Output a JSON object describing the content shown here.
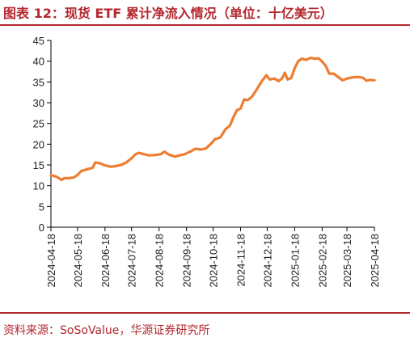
{
  "header": {
    "title": "图表 12：现货 ETF 累计净流入情况（单位：十亿美元）"
  },
  "footer": {
    "source": "资料来源：SoSoValue，华源证券研究所"
  },
  "colors": {
    "accent": "#b3272e",
    "line": "#ed7d31",
    "axis": "#000000"
  },
  "chart_data": {
    "type": "line",
    "title": "",
    "xlabel": "",
    "ylabel": "",
    "ylim": [
      0,
      45
    ],
    "yticks": [
      0,
      5,
      10,
      15,
      20,
      25,
      30,
      35,
      40,
      45
    ],
    "grid": false,
    "legend": "none",
    "x_tick_labels": [
      "2024-04-18",
      "2024-05-18",
      "2024-06-18",
      "2024-07-18",
      "2024-08-18",
      "2024-09-18",
      "2024-10-18",
      "2024-11-18",
      "2024-12-18",
      "2025-01-18",
      "2025-02-18",
      "2025-03-18",
      "2025-04-18"
    ],
    "series": [
      {
        "values": [
          [
            "2024-04-18",
            12.5
          ],
          [
            "2024-04-24",
            12.2
          ],
          [
            "2024-04-30",
            11.4
          ],
          [
            "2024-05-03",
            11.8
          ],
          [
            "2024-05-08",
            11.8
          ],
          [
            "2024-05-14",
            12.0
          ],
          [
            "2024-05-18",
            12.6
          ],
          [
            "2024-05-22",
            13.5
          ],
          [
            "2024-05-28",
            13.9
          ],
          [
            "2024-06-04",
            14.3
          ],
          [
            "2024-06-07",
            15.6
          ],
          [
            "2024-06-12",
            15.4
          ],
          [
            "2024-06-18",
            14.9
          ],
          [
            "2024-06-24",
            14.6
          ],
          [
            "2024-06-30",
            14.7
          ],
          [
            "2024-07-06",
            15.0
          ],
          [
            "2024-07-12",
            15.6
          ],
          [
            "2024-07-18",
            16.6
          ],
          [
            "2024-07-22",
            17.5
          ],
          [
            "2024-07-26",
            17.9
          ],
          [
            "2024-08-01",
            17.6
          ],
          [
            "2024-08-07",
            17.3
          ],
          [
            "2024-08-14",
            17.4
          ],
          [
            "2024-08-20",
            17.6
          ],
          [
            "2024-08-24",
            18.2
          ],
          [
            "2024-08-29",
            17.5
          ],
          [
            "2024-09-05",
            17.0
          ],
          [
            "2024-09-10",
            17.3
          ],
          [
            "2024-09-16",
            17.6
          ],
          [
            "2024-09-22",
            18.2
          ],
          [
            "2024-09-28",
            18.9
          ],
          [
            "2024-10-04",
            18.7
          ],
          [
            "2024-10-10",
            19.0
          ],
          [
            "2024-10-16",
            20.2
          ],
          [
            "2024-10-20",
            21.2
          ],
          [
            "2024-10-26",
            21.6
          ],
          [
            "2024-11-01",
            23.6
          ],
          [
            "2024-11-06",
            24.5
          ],
          [
            "2024-11-10",
            26.6
          ],
          [
            "2024-11-14",
            28.2
          ],
          [
            "2024-11-18",
            28.6
          ],
          [
            "2024-11-22",
            30.8
          ],
          [
            "2024-11-26",
            30.6
          ],
          [
            "2024-12-01",
            31.5
          ],
          [
            "2024-12-06",
            33.1
          ],
          [
            "2024-12-12",
            35.2
          ],
          [
            "2024-12-17",
            36.6
          ],
          [
            "2024-12-21",
            35.6
          ],
          [
            "2024-12-26",
            35.8
          ],
          [
            "2024-12-31",
            35.2
          ],
          [
            "2025-01-04",
            35.9
          ],
          [
            "2025-01-07",
            37.2
          ],
          [
            "2025-01-10",
            35.6
          ],
          [
            "2025-01-14",
            35.9
          ],
          [
            "2025-01-18",
            38.3
          ],
          [
            "2025-01-22",
            40.0
          ],
          [
            "2025-01-26",
            40.6
          ],
          [
            "2025-01-31",
            40.3
          ],
          [
            "2025-02-05",
            40.8
          ],
          [
            "2025-02-10",
            40.6
          ],
          [
            "2025-02-14",
            40.7
          ],
          [
            "2025-02-18",
            39.9
          ],
          [
            "2025-02-22",
            38.9
          ],
          [
            "2025-02-26",
            37.0
          ],
          [
            "2025-03-03",
            37.0
          ],
          [
            "2025-03-08",
            36.2
          ],
          [
            "2025-03-13",
            35.4
          ],
          [
            "2025-03-18",
            35.8
          ],
          [
            "2025-03-24",
            36.1
          ],
          [
            "2025-03-30",
            36.2
          ],
          [
            "2025-04-05",
            36.0
          ],
          [
            "2025-04-09",
            35.3
          ],
          [
            "2025-04-13",
            35.5
          ],
          [
            "2025-04-18",
            35.4
          ]
        ]
      }
    ]
  }
}
